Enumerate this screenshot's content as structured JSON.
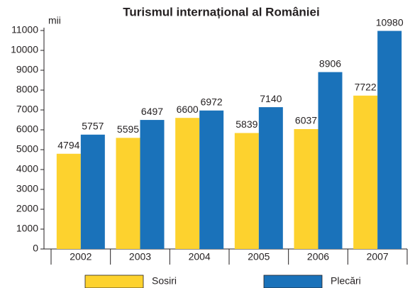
{
  "chart_data": {
    "type": "bar",
    "title": "Turismul internațional al României",
    "y_label": "mii",
    "categories": [
      "2002",
      "2003",
      "2004",
      "2005",
      "2006",
      "2007"
    ],
    "series": [
      {
        "name": "Sosiri",
        "color": "#fdd22e",
        "values": [
          4794,
          5595,
          6600,
          5839,
          6037,
          7722
        ]
      },
      {
        "name": "Plecări",
        "color": "#1a72ba",
        "values": [
          5757,
          6497,
          6972,
          7140,
          8906,
          10980
        ]
      }
    ],
    "ylim": [
      0,
      11000
    ],
    "yticks": [
      0,
      1000,
      2000,
      3000,
      4000,
      5000,
      6000,
      7000,
      8000,
      9000,
      10000,
      11000
    ],
    "legend": "bottom"
  }
}
